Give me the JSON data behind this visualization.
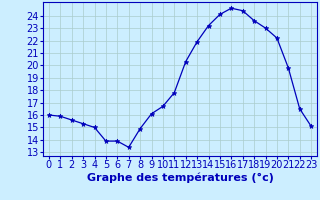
{
  "x": [
    0,
    1,
    2,
    3,
    4,
    5,
    6,
    7,
    8,
    9,
    10,
    11,
    12,
    13,
    14,
    15,
    16,
    17,
    18,
    19,
    20,
    21,
    22,
    23
  ],
  "y": [
    16.0,
    15.9,
    15.6,
    15.3,
    15.0,
    13.9,
    13.9,
    13.4,
    14.9,
    16.1,
    16.7,
    17.8,
    20.3,
    21.9,
    23.2,
    24.1,
    24.6,
    24.4,
    23.6,
    23.0,
    22.2,
    19.8,
    16.5,
    15.1
  ],
  "xlabel": "Graphe des températures (°c)",
  "ylabel_ticks": [
    13,
    14,
    15,
    16,
    17,
    18,
    19,
    20,
    21,
    22,
    23,
    24
  ],
  "ylim": [
    12.7,
    25.1
  ],
  "xlim": [
    -0.5,
    23.5
  ],
  "line_color": "#0000bb",
  "marker": "*",
  "marker_size": 3.5,
  "background_color": "#cceeff",
  "grid_color": "#aacccc",
  "axis_color": "#0000bb",
  "tick_label_color": "#0000bb",
  "xlabel_color": "#0000bb",
  "xlabel_fontsize": 8,
  "tick_fontsize": 7
}
